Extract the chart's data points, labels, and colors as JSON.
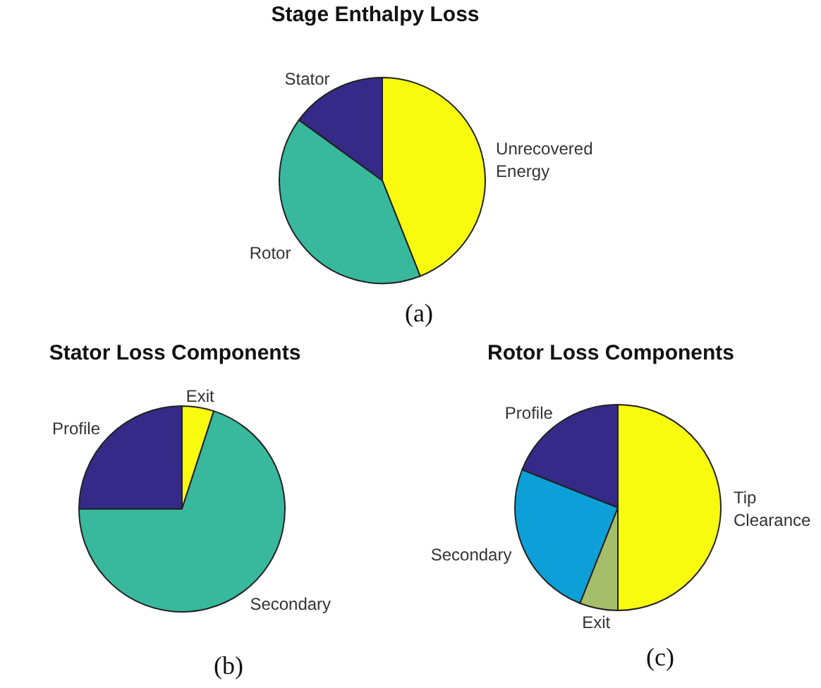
{
  "chart_data": [
    {
      "type": "pie",
      "title": "Stage Enthalpy Loss",
      "categories": [
        "Unrecovered Energy",
        "Rotor",
        "Stator"
      ],
      "values": [
        44,
        41,
        15
      ],
      "colors": [
        "#f9fb0e",
        "#38b99e",
        "#352a87"
      ],
      "annotations": [
        "(a)"
      ]
    },
    {
      "type": "pie",
      "title": "Stator Loss Components",
      "categories": [
        "Exit",
        "Secondary",
        "Profile"
      ],
      "values": [
        5,
        70,
        25
      ],
      "colors": [
        "#f9fb0e",
        "#38b99e",
        "#352a87"
      ],
      "annotations": [
        "(b)"
      ]
    },
    {
      "type": "pie",
      "title": "Rotor Loss Components",
      "categories": [
        "Tip Clearance",
        "Exit",
        "Secondary",
        "Profile"
      ],
      "values": [
        50,
        6,
        25,
        19
      ],
      "colors": [
        "#f9fb0e",
        "#a5be6a",
        "#0d9fd8",
        "#352a87"
      ],
      "annotations": [
        "(c)"
      ]
    }
  ]
}
